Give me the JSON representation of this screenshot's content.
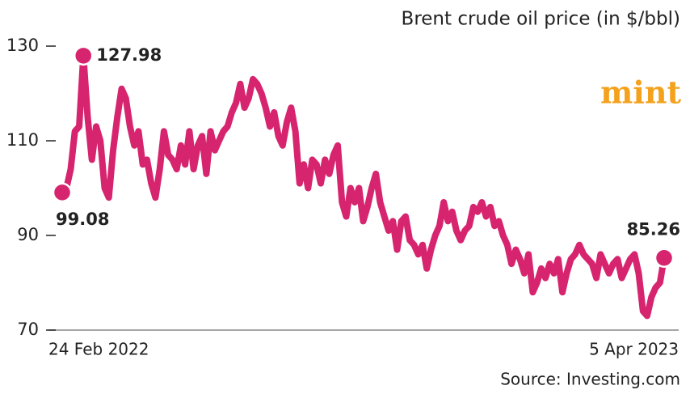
{
  "chart_data": {
    "type": "line",
    "title": "Brent crude oil price (in $/bbl)",
    "logo": "mint",
    "source": "Source: Investing.com",
    "color": "#d6246e",
    "ylim": [
      70,
      130
    ],
    "yticks": [
      70,
      90,
      110,
      130
    ],
    "categories": [
      "24 Feb 2022",
      null,
      null,
      null,
      null,
      null,
      null,
      null,
      null,
      null,
      null,
      null,
      null,
      null,
      null,
      null,
      null,
      null,
      null,
      null,
      null,
      null,
      null,
      null,
      null,
      null,
      null,
      null,
      null,
      null,
      null,
      null,
      null,
      null,
      null,
      null,
      null,
      null,
      null,
      null,
      null,
      null,
      null,
      null,
      null,
      null,
      null,
      null,
      null,
      null,
      null,
      null,
      null,
      null,
      null,
      null,
      null,
      null,
      null,
      null,
      null,
      null,
      null,
      null,
      null,
      null,
      null,
      null,
      null,
      null,
      null,
      null,
      null,
      null,
      null,
      null,
      null,
      null,
      null,
      null,
      null,
      null,
      null,
      null,
      null,
      null,
      null,
      null,
      null,
      null,
      null,
      null,
      null,
      null,
      null,
      null,
      null,
      null,
      null,
      null,
      null,
      null,
      null,
      null,
      null,
      null,
      null,
      null,
      null,
      null,
      null,
      null,
      null,
      null,
      null,
      null,
      null,
      null,
      null,
      null,
      null,
      null,
      null,
      null,
      null,
      null,
      null,
      null,
      null,
      null,
      null,
      null,
      null,
      null,
      null,
      null,
      null,
      null,
      null,
      null,
      null,
      null,
      "5 Apr 2023"
    ],
    "values": [
      99.08,
      100,
      104,
      112,
      113,
      127.98,
      115,
      106,
      113,
      110,
      100,
      98,
      108,
      115,
      121,
      119,
      113,
      109,
      112,
      105,
      106,
      101,
      98,
      104,
      112,
      107,
      106,
      104,
      109,
      105,
      112,
      104,
      109,
      111,
      103,
      112,
      108,
      110,
      112,
      113,
      116,
      118,
      122,
      117,
      119,
      123,
      122,
      120,
      117,
      113,
      116,
      111,
      109,
      114,
      117,
      112,
      101,
      105,
      100,
      106,
      105,
      101,
      106,
      103,
      107,
      109,
      97,
      94,
      100,
      97,
      100,
      93,
      96,
      100,
      103,
      97,
      94,
      91,
      93,
      87,
      93,
      94,
      89,
      88,
      86,
      88,
      83,
      87,
      90,
      92,
      97,
      93,
      95,
      91,
      89,
      91,
      92,
      96,
      95,
      97,
      94,
      96,
      92,
      93,
      90,
      88,
      84,
      87,
      85,
      82,
      86,
      78,
      80,
      83,
      81,
      84,
      82,
      85,
      78,
      82,
      85,
      86,
      88,
      86,
      85,
      84,
      81,
      86,
      84,
      82,
      84,
      85,
      81,
      83,
      85,
      86,
      82,
      74,
      73,
      77,
      79,
      80,
      85.26
    ]
  }
}
